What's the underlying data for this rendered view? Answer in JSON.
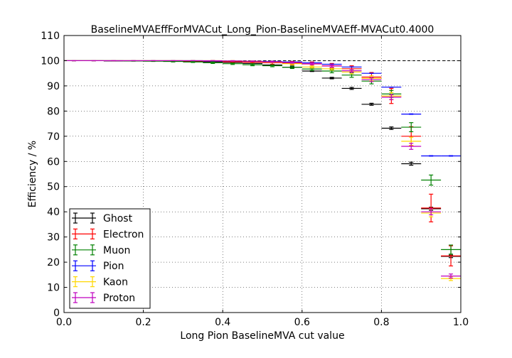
{
  "chart_data": {
    "type": "scatter",
    "title": "BaselineMVAEffForMVACut_Long_Pion-BaselineMVAEff-MVACut0.4000",
    "xlabel": "Long Pion BaselineMVA cut value",
    "ylabel": "Efficiency / %",
    "xlim": [
      0.0,
      1.0
    ],
    "ylim": [
      0,
      110
    ],
    "x_ticks": [
      "0.0",
      "0.2",
      "0.4",
      "0.6",
      "0.8",
      "1.0"
    ],
    "y_ticks": [
      "0",
      "10",
      "20",
      "30",
      "40",
      "50",
      "60",
      "70",
      "80",
      "90",
      "100",
      "110"
    ],
    "reference_line": {
      "y": 100,
      "style": "dashed"
    },
    "grid": true,
    "legend_position": "lower-left",
    "series": [
      {
        "name": "Ghost",
        "color": "#000000",
        "points": [
          {
            "x": 0.025,
            "y": 100.0,
            "xerr": 0.025,
            "yerr": 0.0
          },
          {
            "x": 0.075,
            "y": 100.0,
            "xerr": 0.025,
            "yerr": 0.0
          },
          {
            "x": 0.125,
            "y": 99.9,
            "xerr": 0.025,
            "yerr": 0.0
          },
          {
            "x": 0.175,
            "y": 99.9,
            "xerr": 0.025,
            "yerr": 0.0
          },
          {
            "x": 0.225,
            "y": 99.9,
            "xerr": 0.025,
            "yerr": 0.0
          },
          {
            "x": 0.275,
            "y": 99.8,
            "xerr": 0.025,
            "yerr": 0.0
          },
          {
            "x": 0.325,
            "y": 99.7,
            "xerr": 0.025,
            "yerr": 0.0
          },
          {
            "x": 0.375,
            "y": 99.5,
            "xerr": 0.025,
            "yerr": 0.0
          },
          {
            "x": 0.425,
            "y": 99.3,
            "xerr": 0.025,
            "yerr": 0.1
          },
          {
            "x": 0.475,
            "y": 98.9,
            "xerr": 0.025,
            "yerr": 0.1
          },
          {
            "x": 0.525,
            "y": 98.3,
            "xerr": 0.025,
            "yerr": 0.1
          },
          {
            "x": 0.575,
            "y": 97.4,
            "xerr": 0.025,
            "yerr": 0.2
          },
          {
            "x": 0.625,
            "y": 95.9,
            "xerr": 0.025,
            "yerr": 0.2
          },
          {
            "x": 0.675,
            "y": 93.1,
            "xerr": 0.025,
            "yerr": 0.3
          },
          {
            "x": 0.725,
            "y": 89.0,
            "xerr": 0.025,
            "yerr": 0.4
          },
          {
            "x": 0.775,
            "y": 82.7,
            "xerr": 0.025,
            "yerr": 0.4
          },
          {
            "x": 0.825,
            "y": 73.2,
            "xerr": 0.025,
            "yerr": 0.5
          },
          {
            "x": 0.875,
            "y": 59.1,
            "xerr": 0.025,
            "yerr": 0.6
          },
          {
            "x": 0.925,
            "y": 41.2,
            "xerr": 0.025,
            "yerr": 0.6
          },
          {
            "x": 0.975,
            "y": 22.3,
            "xerr": 0.025,
            "yerr": 0.5
          }
        ]
      },
      {
        "name": "Electron",
        "color": "#ff0000",
        "points": [
          {
            "x": 0.025,
            "y": 100.0,
            "xerr": 0.025,
            "yerr": 0.0
          },
          {
            "x": 0.075,
            "y": 100.0,
            "xerr": 0.025,
            "yerr": 0.0
          },
          {
            "x": 0.125,
            "y": 100.0,
            "xerr": 0.025,
            "yerr": 0.0
          },
          {
            "x": 0.175,
            "y": 100.0,
            "xerr": 0.025,
            "yerr": 0.0
          },
          {
            "x": 0.225,
            "y": 100.0,
            "xerr": 0.025,
            "yerr": 0.0
          },
          {
            "x": 0.275,
            "y": 100.0,
            "xerr": 0.025,
            "yerr": 0.0
          },
          {
            "x": 0.325,
            "y": 99.9,
            "xerr": 0.025,
            "yerr": 0.2
          },
          {
            "x": 0.375,
            "y": 99.8,
            "xerr": 0.025,
            "yerr": 0.3
          },
          {
            "x": 0.425,
            "y": 99.6,
            "xerr": 0.025,
            "yerr": 0.4
          },
          {
            "x": 0.475,
            "y": 99.4,
            "xerr": 0.025,
            "yerr": 0.5
          },
          {
            "x": 0.525,
            "y": 99.2,
            "xerr": 0.025,
            "yerr": 0.6
          },
          {
            "x": 0.575,
            "y": 99.0,
            "xerr": 0.025,
            "yerr": 0.7
          },
          {
            "x": 0.625,
            "y": 98.7,
            "xerr": 0.025,
            "yerr": 0.8
          },
          {
            "x": 0.675,
            "y": 98.0,
            "xerr": 0.025,
            "yerr": 0.9
          },
          {
            "x": 0.725,
            "y": 96.8,
            "xerr": 0.025,
            "yerr": 1.2
          },
          {
            "x": 0.775,
            "y": 93.5,
            "xerr": 0.025,
            "yerr": 1.8
          },
          {
            "x": 0.825,
            "y": 86.0,
            "xerr": 0.025,
            "yerr": 3.0
          },
          {
            "x": 0.875,
            "y": 70.0,
            "xerr": 0.025,
            "yerr": 3.8
          },
          {
            "x": 0.925,
            "y": 41.5,
            "xerr": 0.025,
            "yerr": 5.5
          },
          {
            "x": 0.975,
            "y": 22.5,
            "xerr": 0.025,
            "yerr": 4.0
          }
        ]
      },
      {
        "name": "Muon",
        "color": "#008000",
        "points": [
          {
            "x": 0.025,
            "y": 100.0,
            "xerr": 0.025,
            "yerr": 0.0
          },
          {
            "x": 0.075,
            "y": 100.0,
            "xerr": 0.025,
            "yerr": 0.0
          },
          {
            "x": 0.125,
            "y": 100.0,
            "xerr": 0.025,
            "yerr": 0.0
          },
          {
            "x": 0.175,
            "y": 99.9,
            "xerr": 0.025,
            "yerr": 0.1
          },
          {
            "x": 0.225,
            "y": 99.8,
            "xerr": 0.025,
            "yerr": 0.1
          },
          {
            "x": 0.275,
            "y": 99.7,
            "xerr": 0.025,
            "yerr": 0.2
          },
          {
            "x": 0.325,
            "y": 99.5,
            "xerr": 0.025,
            "yerr": 0.2
          },
          {
            "x": 0.375,
            "y": 99.2,
            "xerr": 0.025,
            "yerr": 0.3
          },
          {
            "x": 0.425,
            "y": 98.8,
            "xerr": 0.025,
            "yerr": 0.3
          },
          {
            "x": 0.475,
            "y": 98.4,
            "xerr": 0.025,
            "yerr": 0.4
          },
          {
            "x": 0.525,
            "y": 98.0,
            "xerr": 0.025,
            "yerr": 0.4
          },
          {
            "x": 0.575,
            "y": 97.4,
            "xerr": 0.025,
            "yerr": 0.5
          },
          {
            "x": 0.625,
            "y": 96.7,
            "xerr": 0.025,
            "yerr": 0.6
          },
          {
            "x": 0.675,
            "y": 95.9,
            "xerr": 0.025,
            "yerr": 0.7
          },
          {
            "x": 0.725,
            "y": 94.3,
            "xerr": 0.025,
            "yerr": 0.9
          },
          {
            "x": 0.775,
            "y": 91.9,
            "xerr": 0.025,
            "yerr": 1.1
          },
          {
            "x": 0.825,
            "y": 86.8,
            "xerr": 0.025,
            "yerr": 1.4
          },
          {
            "x": 0.875,
            "y": 73.6,
            "xerr": 0.025,
            "yerr": 1.8
          },
          {
            "x": 0.925,
            "y": 52.6,
            "xerr": 0.025,
            "yerr": 2.0
          },
          {
            "x": 0.975,
            "y": 25.0,
            "xerr": 0.025,
            "yerr": 1.8
          }
        ]
      },
      {
        "name": "Pion",
        "color": "#0000ff",
        "points": [
          {
            "x": 0.025,
            "y": 100.0,
            "xerr": 0.025,
            "yerr": 0.0
          },
          {
            "x": 0.075,
            "y": 100.0,
            "xerr": 0.025,
            "yerr": 0.0
          },
          {
            "x": 0.125,
            "y": 100.0,
            "xerr": 0.025,
            "yerr": 0.0
          },
          {
            "x": 0.175,
            "y": 100.0,
            "xerr": 0.025,
            "yerr": 0.0
          },
          {
            "x": 0.225,
            "y": 100.0,
            "xerr": 0.025,
            "yerr": 0.0
          },
          {
            "x": 0.275,
            "y": 100.0,
            "xerr": 0.025,
            "yerr": 0.0
          },
          {
            "x": 0.325,
            "y": 100.0,
            "xerr": 0.025,
            "yerr": 0.0
          },
          {
            "x": 0.375,
            "y": 99.9,
            "xerr": 0.025,
            "yerr": 0.0
          },
          {
            "x": 0.425,
            "y": 99.9,
            "xerr": 0.025,
            "yerr": 0.0
          },
          {
            "x": 0.475,
            "y": 99.8,
            "xerr": 0.025,
            "yerr": 0.0
          },
          {
            "x": 0.525,
            "y": 99.7,
            "xerr": 0.025,
            "yerr": 0.0
          },
          {
            "x": 0.575,
            "y": 99.5,
            "xerr": 0.025,
            "yerr": 0.0
          },
          {
            "x": 0.625,
            "y": 99.2,
            "xerr": 0.025,
            "yerr": 0.0
          },
          {
            "x": 0.675,
            "y": 98.6,
            "xerr": 0.025,
            "yerr": 0.0
          },
          {
            "x": 0.725,
            "y": 97.5,
            "xerr": 0.025,
            "yerr": 0.0
          },
          {
            "x": 0.775,
            "y": 95.0,
            "xerr": 0.025,
            "yerr": 0.0
          },
          {
            "x": 0.825,
            "y": 89.5,
            "xerr": 0.025,
            "yerr": 0.0
          },
          {
            "x": 0.875,
            "y": 78.8,
            "xerr": 0.025,
            "yerr": 0.1
          },
          {
            "x": 0.925,
            "y": 62.2,
            "xerr": 0.025,
            "yerr": 0.1
          },
          {
            "x": 0.975,
            "y": 62.2,
            "xerr": 0.025,
            "yerr": 0.1
          }
        ]
      },
      {
        "name": "Kaon",
        "color": "#ffd700",
        "points": [
          {
            "x": 0.025,
            "y": 100.0,
            "xerr": 0.025,
            "yerr": 0.0
          },
          {
            "x": 0.075,
            "y": 100.0,
            "xerr": 0.025,
            "yerr": 0.0
          },
          {
            "x": 0.125,
            "y": 100.0,
            "xerr": 0.025,
            "yerr": 0.0
          },
          {
            "x": 0.175,
            "y": 100.0,
            "xerr": 0.025,
            "yerr": 0.0
          },
          {
            "x": 0.225,
            "y": 100.0,
            "xerr": 0.025,
            "yerr": 0.0
          },
          {
            "x": 0.275,
            "y": 100.0,
            "xerr": 0.025,
            "yerr": 0.0
          },
          {
            "x": 0.325,
            "y": 100.0,
            "xerr": 0.025,
            "yerr": 0.0
          },
          {
            "x": 0.375,
            "y": 100.0,
            "xerr": 0.025,
            "yerr": 0.0
          },
          {
            "x": 0.425,
            "y": 99.9,
            "xerr": 0.025,
            "yerr": 0.1
          },
          {
            "x": 0.475,
            "y": 99.8,
            "xerr": 0.025,
            "yerr": 0.1
          },
          {
            "x": 0.525,
            "y": 99.5,
            "xerr": 0.025,
            "yerr": 0.2
          },
          {
            "x": 0.575,
            "y": 98.8,
            "xerr": 0.025,
            "yerr": 0.3
          },
          {
            "x": 0.625,
            "y": 97.5,
            "xerr": 0.025,
            "yerr": 0.4
          },
          {
            "x": 0.675,
            "y": 96.8,
            "xerr": 0.025,
            "yerr": 0.5
          },
          {
            "x": 0.725,
            "y": 95.5,
            "xerr": 0.025,
            "yerr": 0.7
          },
          {
            "x": 0.775,
            "y": 93.0,
            "xerr": 0.025,
            "yerr": 1.0
          },
          {
            "x": 0.825,
            "y": 86.0,
            "xerr": 0.025,
            "yerr": 1.4
          },
          {
            "x": 0.875,
            "y": 68.0,
            "xerr": 0.025,
            "yerr": 1.6
          },
          {
            "x": 0.925,
            "y": 39.5,
            "xerr": 0.025,
            "yerr": 1.5
          },
          {
            "x": 0.975,
            "y": 13.5,
            "xerr": 0.025,
            "yerr": 0.8
          }
        ]
      },
      {
        "name": "Proton",
        "color": "#bf00bf",
        "points": [
          {
            "x": 0.025,
            "y": 100.0,
            "xerr": 0.025,
            "yerr": 0.0
          },
          {
            "x": 0.075,
            "y": 100.0,
            "xerr": 0.025,
            "yerr": 0.0
          },
          {
            "x": 0.125,
            "y": 100.0,
            "xerr": 0.025,
            "yerr": 0.0
          },
          {
            "x": 0.175,
            "y": 100.0,
            "xerr": 0.025,
            "yerr": 0.0
          },
          {
            "x": 0.225,
            "y": 100.0,
            "xerr": 0.025,
            "yerr": 0.0
          },
          {
            "x": 0.275,
            "y": 100.0,
            "xerr": 0.025,
            "yerr": 0.0
          },
          {
            "x": 0.325,
            "y": 100.0,
            "xerr": 0.025,
            "yerr": 0.0
          },
          {
            "x": 0.375,
            "y": 100.0,
            "xerr": 0.025,
            "yerr": 0.0
          },
          {
            "x": 0.425,
            "y": 99.9,
            "xerr": 0.025,
            "yerr": 0.1
          },
          {
            "x": 0.475,
            "y": 99.8,
            "xerr": 0.025,
            "yerr": 0.1
          },
          {
            "x": 0.525,
            "y": 99.6,
            "xerr": 0.025,
            "yerr": 0.2
          },
          {
            "x": 0.575,
            "y": 99.3,
            "xerr": 0.025,
            "yerr": 0.3
          },
          {
            "x": 0.625,
            "y": 98.8,
            "xerr": 0.025,
            "yerr": 0.4
          },
          {
            "x": 0.675,
            "y": 97.9,
            "xerr": 0.025,
            "yerr": 0.5
          },
          {
            "x": 0.725,
            "y": 96.0,
            "xerr": 0.025,
            "yerr": 0.6
          },
          {
            "x": 0.775,
            "y": 92.5,
            "xerr": 0.025,
            "yerr": 0.8
          },
          {
            "x": 0.825,
            "y": 85.5,
            "xerr": 0.025,
            "yerr": 1.0
          },
          {
            "x": 0.875,
            "y": 66.0,
            "xerr": 0.025,
            "yerr": 1.2
          },
          {
            "x": 0.925,
            "y": 40.0,
            "xerr": 0.025,
            "yerr": 1.2
          },
          {
            "x": 0.975,
            "y": 14.5,
            "xerr": 0.025,
            "yerr": 0.8
          }
        ]
      }
    ]
  }
}
